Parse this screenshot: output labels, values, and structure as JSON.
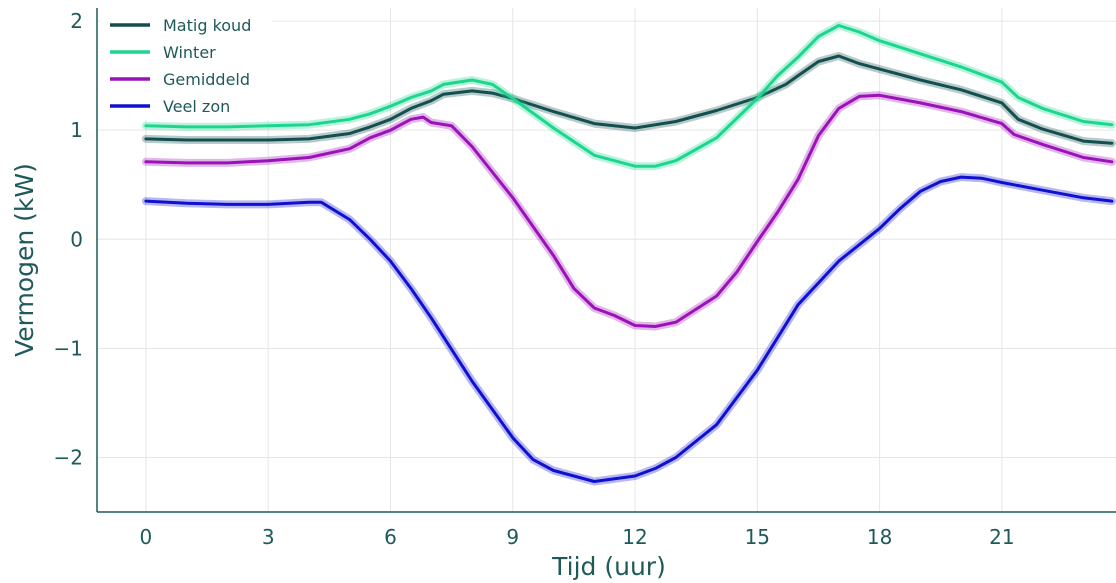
{
  "chart_data": {
    "type": "line",
    "xlabel": "Tijd (uur)",
    "ylabel": "Vermogen (kW)",
    "xlim": [
      -1.2,
      23.8
    ],
    "ylim": [
      -2.5,
      2.12
    ],
    "xticks": [
      0,
      3,
      6,
      9,
      12,
      15,
      18,
      21
    ],
    "yticks": [
      -2,
      -1,
      0,
      1,
      2
    ],
    "ytick_labels": [
      "−2",
      "−1",
      "0",
      "1",
      "2"
    ],
    "grid": true,
    "legend_position": "top-left",
    "series": [
      {
        "name": "Matig koud",
        "color": "#134f4f",
        "points": [
          [
            0,
            0.92
          ],
          [
            1,
            0.91
          ],
          [
            2,
            0.91
          ],
          [
            3,
            0.91
          ],
          [
            4,
            0.92
          ],
          [
            5,
            0.97
          ],
          [
            5.5,
            1.03
          ],
          [
            6,
            1.1
          ],
          [
            6.5,
            1.2
          ],
          [
            7,
            1.27
          ],
          [
            7.3,
            1.33
          ],
          [
            8,
            1.36
          ],
          [
            8.5,
            1.34
          ],
          [
            9,
            1.29
          ],
          [
            10,
            1.17
          ],
          [
            11,
            1.06
          ],
          [
            12,
            1.02
          ],
          [
            13,
            1.08
          ],
          [
            14,
            1.18
          ],
          [
            15,
            1.3
          ],
          [
            15.7,
            1.42
          ],
          [
            16,
            1.5
          ],
          [
            16.5,
            1.63
          ],
          [
            17,
            1.68
          ],
          [
            17.5,
            1.61
          ],
          [
            18,
            1.56
          ],
          [
            19,
            1.46
          ],
          [
            20,
            1.37
          ],
          [
            21,
            1.25
          ],
          [
            21.4,
            1.1
          ],
          [
            22,
            1.01
          ],
          [
            23,
            0.9
          ],
          [
            23.7,
            0.88
          ]
        ]
      },
      {
        "name": "Winter",
        "color": "#1cd68e",
        "points": [
          [
            0,
            1.04
          ],
          [
            1,
            1.03
          ],
          [
            2,
            1.03
          ],
          [
            3,
            1.04
          ],
          [
            4,
            1.05
          ],
          [
            5,
            1.1
          ],
          [
            5.5,
            1.15
          ],
          [
            6,
            1.22
          ],
          [
            6.5,
            1.3
          ],
          [
            7,
            1.36
          ],
          [
            7.3,
            1.42
          ],
          [
            8,
            1.46
          ],
          [
            8.5,
            1.42
          ],
          [
            9,
            1.29
          ],
          [
            10,
            1.02
          ],
          [
            11,
            0.77
          ],
          [
            12,
            0.67
          ],
          [
            12.5,
            0.67
          ],
          [
            13,
            0.72
          ],
          [
            14,
            0.93
          ],
          [
            15,
            1.29
          ],
          [
            15.5,
            1.5
          ],
          [
            16,
            1.67
          ],
          [
            16.5,
            1.86
          ],
          [
            17,
            1.96
          ],
          [
            17.5,
            1.9
          ],
          [
            18,
            1.82
          ],
          [
            19,
            1.7
          ],
          [
            20,
            1.58
          ],
          [
            21,
            1.44
          ],
          [
            21.4,
            1.3
          ],
          [
            22,
            1.2
          ],
          [
            23,
            1.08
          ],
          [
            23.7,
            1.05
          ]
        ]
      },
      {
        "name": "Gemiddeld",
        "color": "#9b12b8",
        "points": [
          [
            0,
            0.71
          ],
          [
            1,
            0.7
          ],
          [
            2,
            0.7
          ],
          [
            3,
            0.72
          ],
          [
            4,
            0.75
          ],
          [
            5,
            0.83
          ],
          [
            5.5,
            0.93
          ],
          [
            6,
            1.0
          ],
          [
            6.5,
            1.1
          ],
          [
            6.8,
            1.12
          ],
          [
            7,
            1.07
          ],
          [
            7.5,
            1.04
          ],
          [
            8,
            0.85
          ],
          [
            9,
            0.38
          ],
          [
            10,
            -0.15
          ],
          [
            10.5,
            -0.45
          ],
          [
            11,
            -0.63
          ],
          [
            11.5,
            -0.7
          ],
          [
            12,
            -0.79
          ],
          [
            12.5,
            -0.8
          ],
          [
            13,
            -0.76
          ],
          [
            14,
            -0.52
          ],
          [
            14.5,
            -0.3
          ],
          [
            15,
            -0.02
          ],
          [
            15.5,
            0.25
          ],
          [
            16,
            0.55
          ],
          [
            16.5,
            0.95
          ],
          [
            17,
            1.2
          ],
          [
            17.5,
            1.31
          ],
          [
            18,
            1.32
          ],
          [
            19,
            1.25
          ],
          [
            20,
            1.17
          ],
          [
            21,
            1.06
          ],
          [
            21.3,
            0.96
          ],
          [
            22,
            0.87
          ],
          [
            23,
            0.75
          ],
          [
            23.7,
            0.71
          ]
        ]
      },
      {
        "name": "Veel zon",
        "color": "#1010d2",
        "points": [
          [
            0,
            0.35
          ],
          [
            1,
            0.33
          ],
          [
            2,
            0.32
          ],
          [
            3,
            0.32
          ],
          [
            4,
            0.34
          ],
          [
            4.3,
            0.34
          ],
          [
            5,
            0.18
          ],
          [
            5.5,
            0.0
          ],
          [
            6,
            -0.2
          ],
          [
            6.5,
            -0.45
          ],
          [
            7,
            -0.72
          ],
          [
            8,
            -1.3
          ],
          [
            9,
            -1.82
          ],
          [
            9.5,
            -2.02
          ],
          [
            10,
            -2.12
          ],
          [
            11,
            -2.22
          ],
          [
            12,
            -2.17
          ],
          [
            12.5,
            -2.1
          ],
          [
            13,
            -2.0
          ],
          [
            14,
            -1.7
          ],
          [
            15,
            -1.2
          ],
          [
            15.5,
            -0.9
          ],
          [
            16,
            -0.6
          ],
          [
            16.5,
            -0.4
          ],
          [
            17,
            -0.2
          ],
          [
            18,
            0.1
          ],
          [
            18.5,
            0.28
          ],
          [
            19,
            0.44
          ],
          [
            19.5,
            0.53
          ],
          [
            20,
            0.57
          ],
          [
            20.5,
            0.56
          ],
          [
            21,
            0.52
          ],
          [
            22,
            0.45
          ],
          [
            23,
            0.38
          ],
          [
            23.7,
            0.35
          ]
        ]
      }
    ]
  }
}
